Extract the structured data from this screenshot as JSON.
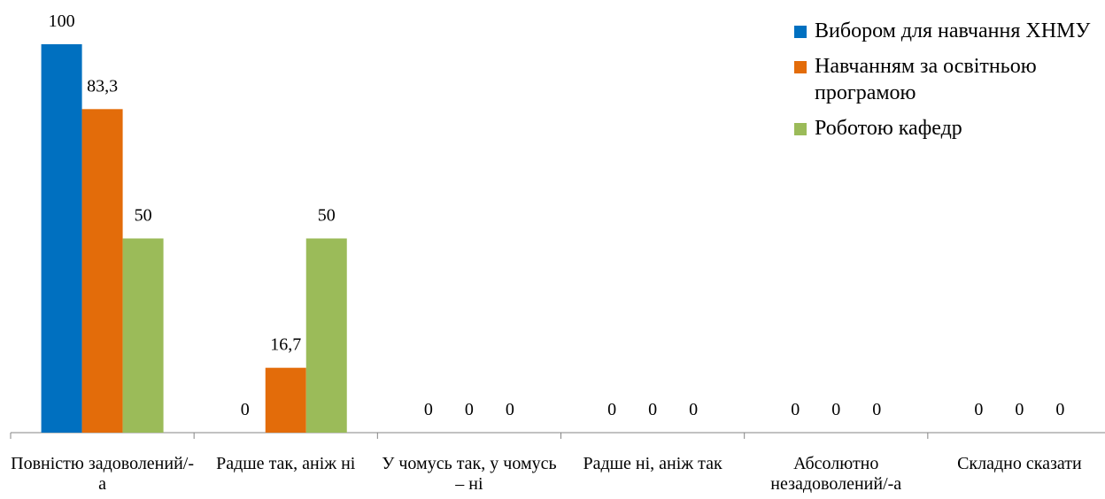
{
  "chart_data": {
    "type": "bar",
    "categories": [
      "Повністю задоволений/-а",
      "Радше так, аніж ні",
      "У чомусь так, у чомусь – ні",
      "Радше ні, аніж так",
      "Абсолютно незадоволений/-а",
      "Складно сказати"
    ],
    "series": [
      {
        "name": "Вибором для навчання ХНМУ",
        "color": "#0070c0",
        "values": [
          100,
          0,
          0,
          0,
          0,
          0
        ]
      },
      {
        "name": "Навчанням за освітньою програмою",
        "color": "#e36c0a",
        "values": [
          83.3,
          16.7,
          0,
          0,
          0,
          0
        ],
        "value_labels": [
          "83,3",
          "16,7",
          "0",
          "0",
          "0",
          "0"
        ]
      },
      {
        "name": "Роботою кафедр",
        "color": "#9bbb59",
        "values": [
          50,
          50,
          0,
          0,
          0,
          0
        ]
      }
    ],
    "ylim": [
      0,
      100
    ],
    "legend": "top-right"
  }
}
